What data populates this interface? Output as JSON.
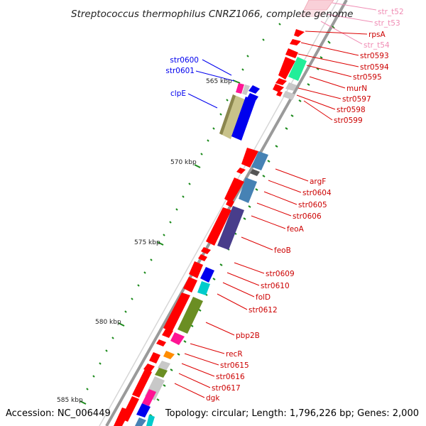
{
  "title": "Streptococcus thermophilus CNRZ1066, complete genome",
  "footer": {
    "accession": "Accession: NC_006449",
    "stats": "Topology: circular; Length: 1,796,226 bp; Genes: 2,000"
  },
  "colors": {
    "red": "#ff0000",
    "blue": "#0000ee",
    "pink_label": "#f08cb4",
    "dark_red_label": "#cc0000",
    "tick_green": "#1a8a1a"
  },
  "ticks": [
    {
      "label": "565 kbp",
      "kbp": 565
    },
    {
      "label": "570 kbp",
      "kbp": 570
    },
    {
      "label": "575 kbp",
      "kbp": 575
    },
    {
      "label": "580 kbp",
      "kbp": 580
    },
    {
      "label": "585 kbp",
      "kbp": 585
    }
  ],
  "gene_labels": [
    {
      "text": "str_t52",
      "color": "pink"
    },
    {
      "text": "str_t53",
      "color": "pink"
    },
    {
      "text": "rpsA",
      "color": "red"
    },
    {
      "text": "str_t54",
      "color": "pink"
    },
    {
      "text": "str0593",
      "color": "red"
    },
    {
      "text": "str0594",
      "color": "red"
    },
    {
      "text": "str0595",
      "color": "red"
    },
    {
      "text": "murN",
      "color": "red"
    },
    {
      "text": "str0597",
      "color": "red"
    },
    {
      "text": "str0598",
      "color": "red"
    },
    {
      "text": "str0599",
      "color": "red"
    },
    {
      "text": "str0600",
      "color": "blue"
    },
    {
      "text": "str0601",
      "color": "blue"
    },
    {
      "text": "clpE",
      "color": "blue"
    },
    {
      "text": "argF",
      "color": "red"
    },
    {
      "text": "str0604",
      "color": "red"
    },
    {
      "text": "str0605",
      "color": "red"
    },
    {
      "text": "str0606",
      "color": "red"
    },
    {
      "text": "feoA",
      "color": "red"
    },
    {
      "text": "feoB",
      "color": "red"
    },
    {
      "text": "str0609",
      "color": "red"
    },
    {
      "text": "str0610",
      "color": "red"
    },
    {
      "text": "folD",
      "color": "red"
    },
    {
      "text": "str0612",
      "color": "red"
    },
    {
      "text": "pbp2B",
      "color": "red"
    },
    {
      "text": "recR",
      "color": "red"
    },
    {
      "text": "str0615",
      "color": "red"
    },
    {
      "text": "str0616",
      "color": "red"
    },
    {
      "text": "str0617",
      "color": "red"
    },
    {
      "text": "dgk",
      "color": "red"
    }
  ]
}
